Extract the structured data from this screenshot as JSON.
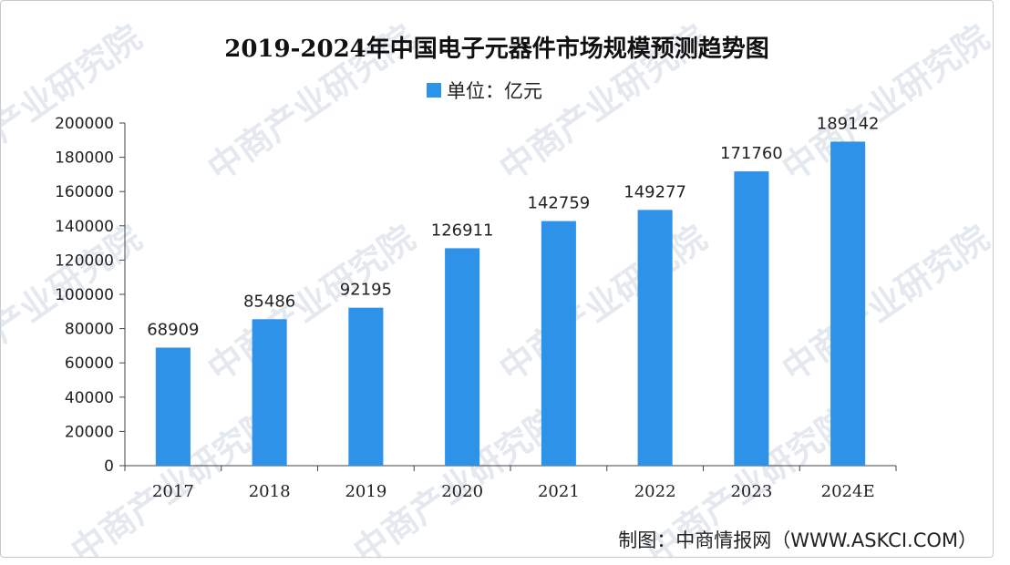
{
  "chart_data": {
    "type": "bar",
    "title": "2019-2024年中国电子元器件市场规模预测趋势图",
    "legend": "单位：亿元",
    "series": [
      {
        "name": "单位：亿元",
        "color": "#2e92e8",
        "values": [
          68909,
          85486,
          92195,
          126911,
          142759,
          149277,
          171760,
          189142
        ]
      }
    ],
    "categories": [
      "2017",
      "2018",
      "2019",
      "2020",
      "2021",
      "2022",
      "2023",
      "2024E"
    ],
    "values": [
      68909,
      85486,
      92195,
      126911,
      142759,
      149277,
      171760,
      189142
    ],
    "ylim": [
      0,
      200000
    ],
    "yticks": [
      0,
      20000,
      40000,
      60000,
      80000,
      100000,
      120000,
      140000,
      160000,
      180000,
      200000
    ],
    "xlabel": "",
    "ylabel": "",
    "grid": false,
    "legend_position": "top-center"
  },
  "credit": "制图：中商情报网（WWW.ASKCI.COM）",
  "watermark": "中商产业研究院"
}
